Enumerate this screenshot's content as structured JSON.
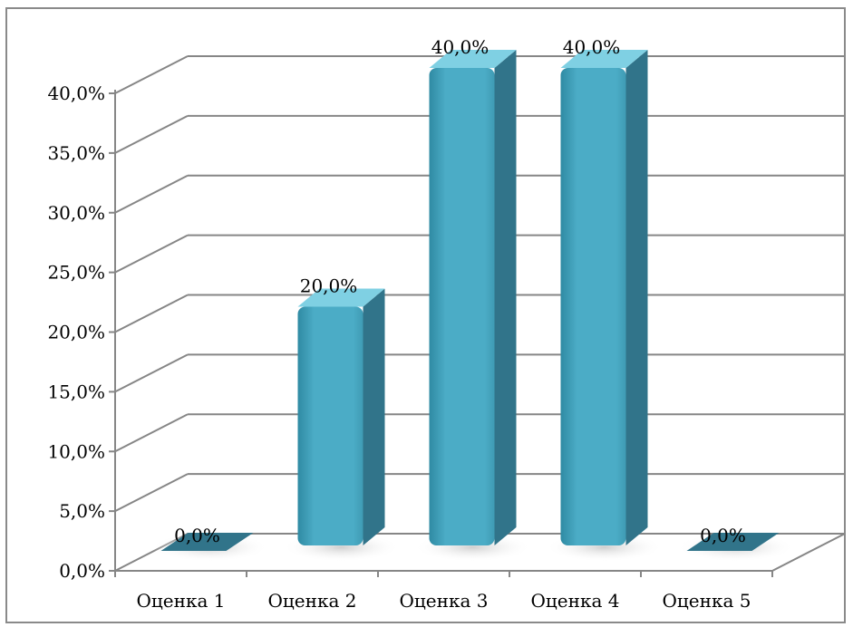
{
  "chart_data": {
    "type": "bar",
    "style": "3d-clustered-column",
    "categories": [
      "Оценка 1",
      "Оценка 2",
      "Оценка 3",
      "Оценка 4",
      "Оценка 5"
    ],
    "values": [
      0.0,
      20.0,
      40.0,
      40.0,
      0.0
    ],
    "data_labels": [
      "0,0%",
      "20,0%",
      "40,0%",
      "40,0%",
      "0,0%"
    ],
    "ylim": [
      0,
      40
    ],
    "ytick_values": [
      0,
      5,
      10,
      15,
      20,
      25,
      30,
      35,
      40
    ],
    "ytick_labels": [
      "0,0%",
      "5,0%",
      "10,0%",
      "15,0%",
      "20,0%",
      "25,0%",
      "30,0%",
      "35,0%",
      "40,0%"
    ],
    "grid": true,
    "legend": "none",
    "title": "",
    "xlabel": "",
    "ylabel": "",
    "colors": {
      "bar_front": "#4bacc6",
      "bar_side": "#31748a",
      "bar_top": "#7fd0e3",
      "gridline": "#868686",
      "axis": "#868686",
      "frame": "#8a8a8a"
    }
  }
}
